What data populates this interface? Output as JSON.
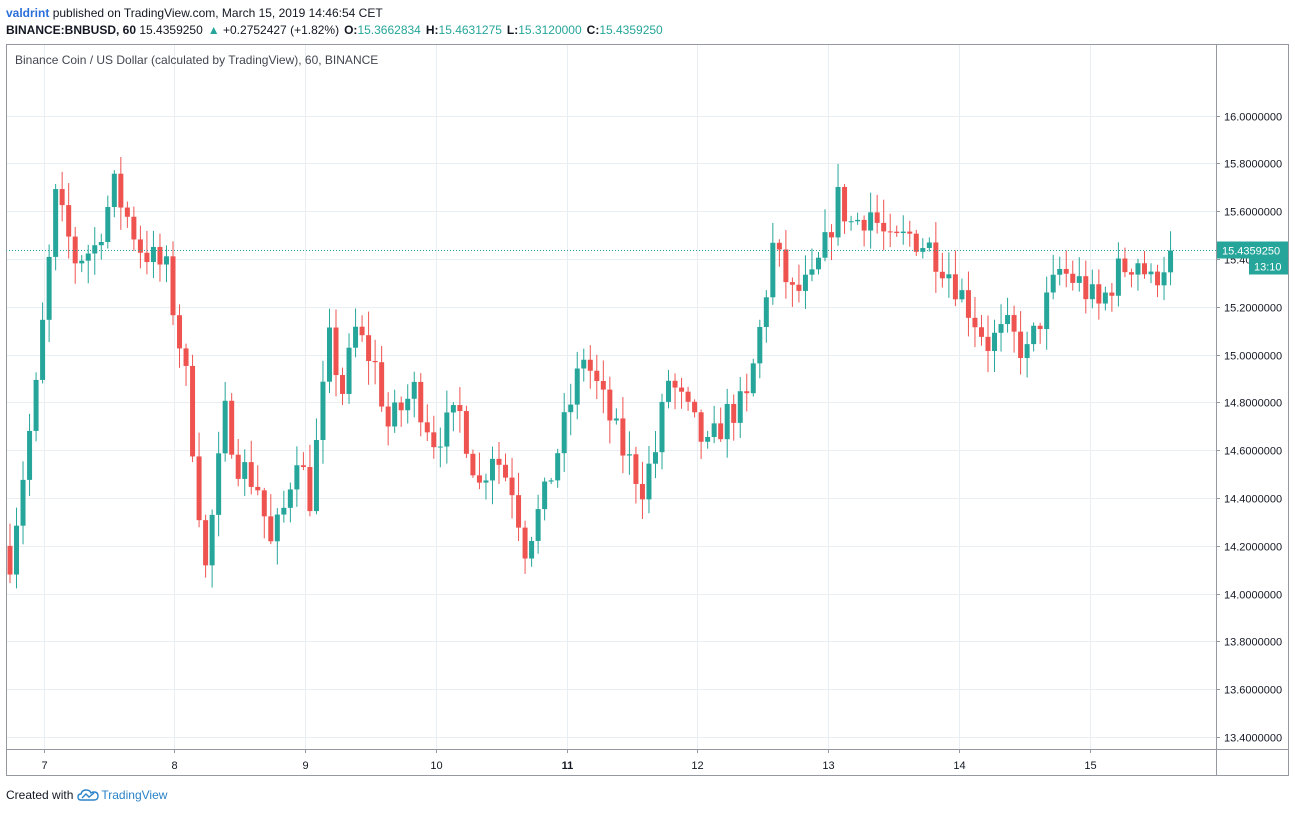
{
  "header": {
    "author": "valdrint",
    "published_text": "published on TradingView.com, March 15, 2019 14:46:54 CET",
    "symbol": "BINANCE:BNBUSD, 60",
    "last_price": "15.4359250",
    "change_arrow": "▲",
    "change": "+0.2752427 (+1.82%)",
    "o_label": "O:",
    "o_value": "15.3662834",
    "h_label": "H:",
    "h_value": "15.4631275",
    "l_label": "L:",
    "l_value": "15.3120000",
    "c_label": "C:",
    "c_value": "15.4359250"
  },
  "footer": {
    "created_with": "Created with",
    "brand": "TradingView",
    "brand_icon": "tradingview-cloud-icon"
  },
  "colors": {
    "up": "#26a69a",
    "down": "#ef5350",
    "grid": "#e9eef2",
    "axis_text": "#131722"
  },
  "chart_data": {
    "type": "candlestick",
    "title": "Binance Coin / US Dollar (calculated by TradingView), 60, BINANCE",
    "interval": "60",
    "grid": true,
    "y_axis_position": "right",
    "ylim": [
      13.35,
      16.3
    ],
    "y_ticks": [
      "16.0000000",
      "15.8000000",
      "15.6000000",
      "15.4000000",
      "15.2000000",
      "15.0000000",
      "14.8000000",
      "14.6000000",
      "14.4000000",
      "14.2000000",
      "14.0000000",
      "13.8000000",
      "13.6000000",
      "13.4000000"
    ],
    "x_ticks": [
      {
        "label": "7",
        "bold": false
      },
      {
        "label": "8",
        "bold": false
      },
      {
        "label": "9",
        "bold": false
      },
      {
        "label": "10",
        "bold": false
      },
      {
        "label": "11",
        "bold": true
      },
      {
        "label": "12",
        "bold": false
      },
      {
        "label": "13",
        "bold": false
      },
      {
        "label": "14",
        "bold": false
      },
      {
        "label": "15",
        "bold": false
      }
    ],
    "last_price_label": "15.4359250",
    "countdown_label": "13:10",
    "anchors": [
      [
        0,
        14.15
      ],
      [
        4,
        14.85
      ],
      [
        7,
        15.65
      ],
      [
        10,
        15.4
      ],
      [
        13,
        15.45
      ],
      [
        16,
        15.7
      ],
      [
        20,
        15.45
      ],
      [
        24,
        15.35
      ],
      [
        27,
        14.9
      ],
      [
        30,
        14.1
      ],
      [
        33,
        14.75
      ],
      [
        35,
        14.55
      ],
      [
        38,
        14.45
      ],
      [
        40,
        14.2
      ],
      [
        42,
        14.35
      ],
      [
        44,
        14.6
      ],
      [
        46,
        14.4
      ],
      [
        49,
        15.05
      ],
      [
        51,
        14.85
      ],
      [
        53,
        15.1
      ],
      [
        56,
        14.95
      ],
      [
        58,
        14.7
      ],
      [
        62,
        14.85
      ],
      [
        65,
        14.65
      ],
      [
        69,
        14.75
      ],
      [
        72,
        14.45
      ],
      [
        74,
        14.6
      ],
      [
        77,
        14.45
      ],
      [
        79,
        14.2
      ],
      [
        82,
        14.4
      ],
      [
        85,
        14.7
      ],
      [
        88,
        15.0
      ],
      [
        91,
        14.8
      ],
      [
        94,
        14.6
      ],
      [
        97,
        14.45
      ],
      [
        99,
        14.6
      ],
      [
        101,
        14.9
      ],
      [
        104,
        14.75
      ],
      [
        107,
        14.6
      ],
      [
        110,
        14.75
      ],
      [
        113,
        14.8
      ],
      [
        115,
        15.1
      ],
      [
        117,
        15.45
      ],
      [
        120,
        15.25
      ],
      [
        123,
        15.3
      ],
      [
        125,
        15.45
      ],
      [
        127,
        15.65
      ],
      [
        129,
        15.55
      ],
      [
        132,
        15.6
      ],
      [
        135,
        15.45
      ],
      [
        138,
        15.5
      ],
      [
        141,
        15.45
      ],
      [
        144,
        15.35
      ],
      [
        147,
        15.2
      ],
      [
        150,
        15.05
      ],
      [
        153,
        15.1
      ],
      [
        156,
        15.0
      ],
      [
        158,
        15.15
      ],
      [
        161,
        15.35
      ],
      [
        164,
        15.3
      ],
      [
        167,
        15.2
      ],
      [
        170,
        15.35
      ],
      [
        173,
        15.4
      ],
      [
        175,
        15.3
      ],
      [
        178,
        15.43
      ]
    ]
  }
}
